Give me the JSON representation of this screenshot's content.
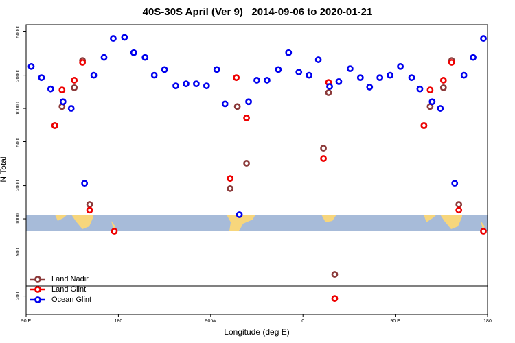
{
  "chart_data": {
    "type": "scatter",
    "title": "40S-30S April (Ver 9)   2014-09-06 to 2020-01-21",
    "x_label": "Longitude (deg E)",
    "y_label": "N Total",
    "log_y": true,
    "legend": "bottom-left",
    "xlim": [
      90,
      540
    ],
    "xticks": [
      {
        "value": 90,
        "label": "90 E"
      },
      180,
      {
        "value": 270,
        "label": "90 W"
      },
      {
        "value": 360,
        "label": "0"
      },
      {
        "value": 450,
        "label": "90 E"
      },
      {
        "value": 540,
        "label": "180"
      }
    ],
    "ylim": [
      137,
      57300
    ],
    "yticks": [
      200,
      500,
      1000,
      2000,
      5000,
      10000,
      20000,
      50000
    ],
    "series": [
      {
        "name": "Land Nadir",
        "color": "#8b3a3a",
        "x": [
          118,
          125,
          137,
          145,
          152,
          289,
          296,
          305,
          380,
          385,
          391,
          478,
          484,
          497,
          505,
          512
        ],
        "values": [
          7000,
          10400,
          15400,
          27200,
          1350,
          1880,
          10400,
          3190,
          4360,
          13900,
          314,
          7000,
          10400,
          15400,
          27200,
          1350
        ]
      },
      {
        "name": "Land Glint",
        "color": "#ee0000",
        "x": [
          118,
          125,
          137,
          145,
          152,
          176,
          289,
          295,
          305,
          380,
          385,
          391,
          478,
          484,
          497,
          505,
          512,
          536
        ],
        "values": [
          7000,
          14700,
          18000,
          26100,
          1200,
          773,
          2320,
          19000,
          8200,
          3520,
          17200,
          190,
          7000,
          14700,
          18000,
          26100,
          1200,
          773
        ]
      },
      {
        "name": "Ocean Glint",
        "color": "#0000ee",
        "x": [
          95,
          105,
          114,
          126,
          134,
          147,
          156,
          166,
          175,
          186,
          195,
          206,
          215,
          225,
          236,
          246,
          256,
          266,
          276,
          284,
          298,
          307,
          315,
          325,
          336,
          346,
          356,
          366,
          375,
          386,
          395,
          406,
          416,
          425,
          435,
          445,
          455,
          466,
          474,
          486,
          494,
          508,
          517,
          526,
          536
        ],
        "values": [
          24000,
          19000,
          15000,
          11500,
          10000,
          2100,
          20000,
          29000,
          43000,
          44000,
          32000,
          29000,
          20000,
          22500,
          16000,
          16700,
          16700,
          16000,
          22500,
          11000,
          1090,
          11500,
          18000,
          18000,
          22500,
          32000,
          21300,
          20000,
          27600,
          15800,
          17500,
          22900,
          19000,
          15600,
          19000,
          20000,
          24000,
          19000,
          15000,
          11500,
          10000,
          2100,
          20000,
          29000,
          43000
        ]
      }
    ]
  }
}
